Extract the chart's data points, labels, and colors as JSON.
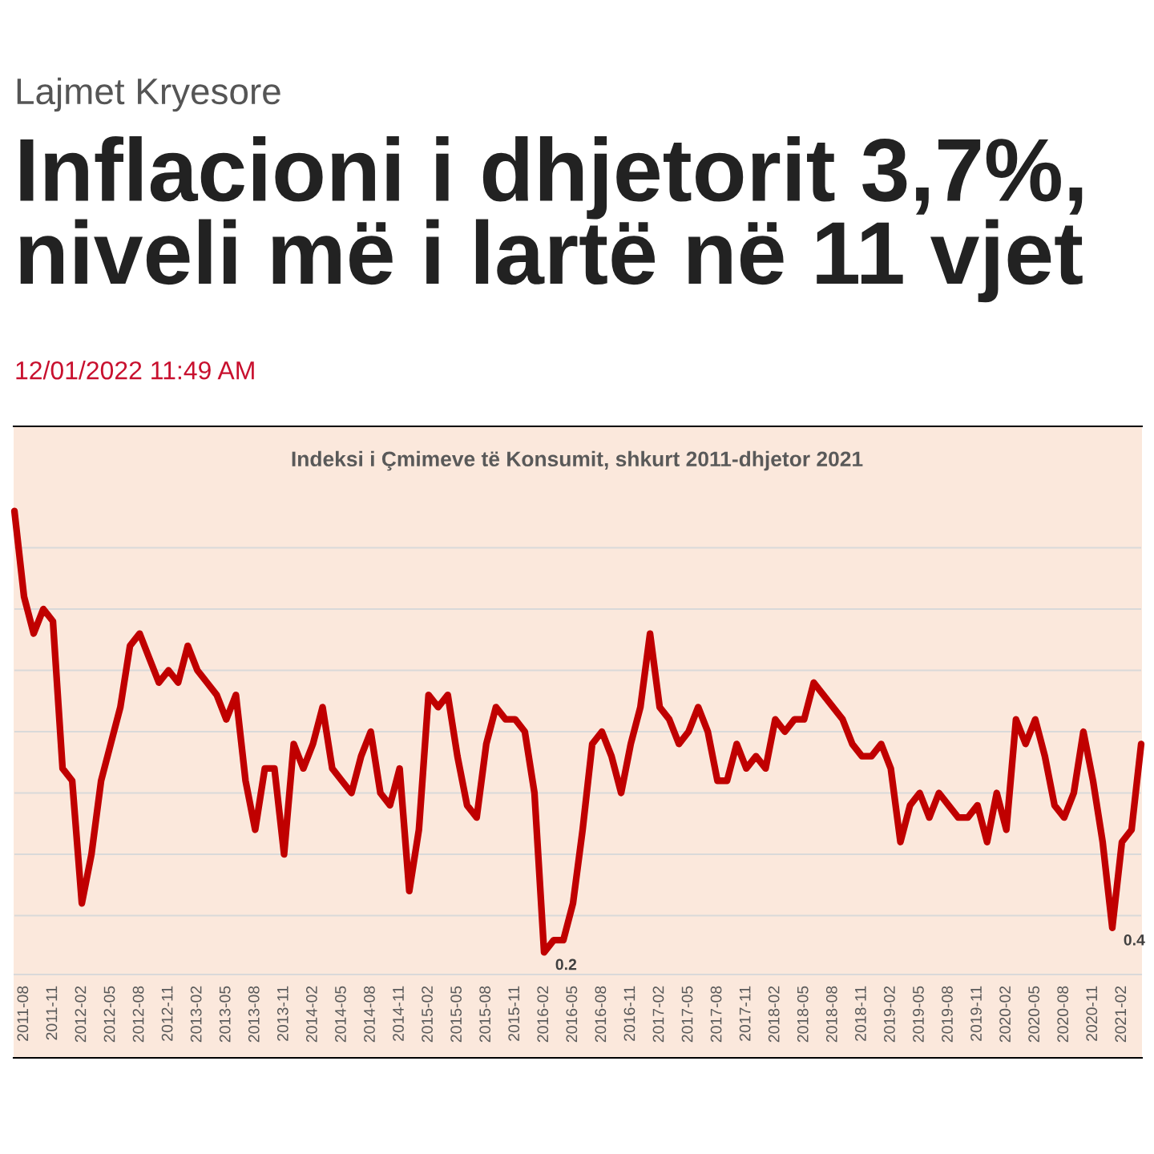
{
  "chart_data": {
    "type": "line",
    "title": "Inflacioni i dhjetorit 3,7%, niveli më i lartë në 11 vjet",
    "subtitle": "Indeksi i Çmimeve të Konsumit, shkurt 2011-dhjetor 2021",
    "annotations": [
      "Lajmet Kryesore",
      "12/01/2022 11:49 AM"
    ],
    "categories": [
      null,
      "2011-08",
      null,
      null,
      "2011-11",
      null,
      null,
      "2012-02",
      null,
      null,
      "2012-05",
      null,
      null,
      "2012-08",
      null,
      null,
      "2012-11",
      null,
      null,
      "2013-02",
      null,
      null,
      "2013-05",
      null,
      null,
      "2013-08",
      null,
      null,
      "2013-11",
      null,
      null,
      "2014-02",
      null,
      null,
      "2014-05",
      null,
      null,
      "2014-08",
      null,
      null,
      "2014-11",
      null,
      null,
      "2015-02",
      null,
      null,
      "2015-05",
      null,
      null,
      "2015-08",
      null,
      null,
      "2015-11",
      null,
      null,
      "2016-02",
      null,
      null,
      "2016-05",
      null,
      null,
      "2016-08",
      null,
      null,
      "2016-11",
      null,
      null,
      "2017-02",
      null,
      null,
      "2017-05",
      null,
      null,
      "2017-08",
      null,
      null,
      "2017-11",
      null,
      null,
      "2018-02",
      null,
      null,
      "2018-05",
      null,
      null,
      "2018-08",
      null,
      null,
      "2018-11",
      null,
      null,
      "2019-02",
      null,
      null,
      "2019-05",
      null,
      null,
      "2019-08",
      null,
      null,
      "2019-11",
      null,
      null,
      "2020-02",
      null,
      null,
      "2020-05",
      null,
      null,
      "2020-08",
      null,
      null,
      "2020-11",
      null,
      null,
      "2021-02",
      null,
      null
    ],
    "series": [
      {
        "color": "#c00000",
        "values": [
          3.8,
          3.1,
          2.8,
          3.0,
          2.9,
          1.7,
          1.6,
          0.6,
          1.0,
          1.6,
          1.9,
          2.2,
          2.7,
          2.8,
          2.6,
          2.4,
          2.5,
          2.4,
          2.7,
          2.5,
          2.4,
          2.3,
          2.1,
          2.3,
          1.6,
          1.2,
          1.7,
          1.7,
          1.0,
          1.9,
          1.7,
          1.9,
          2.2,
          1.7,
          1.6,
          1.5,
          1.8,
          2.0,
          1.5,
          1.4,
          1.7,
          0.7,
          1.2,
          2.3,
          2.2,
          2.3,
          1.8,
          1.4,
          1.3,
          1.9,
          2.2,
          2.1,
          2.1,
          2.0,
          1.5,
          0.2,
          0.3,
          0.3,
          0.6,
          1.2,
          1.9,
          2.0,
          1.8,
          1.5,
          1.9,
          2.2,
          2.8,
          2.2,
          2.1,
          1.9,
          2.0,
          2.2,
          2.0,
          1.6,
          1.6,
          1.9,
          1.7,
          1.8,
          1.7,
          2.1,
          2.0,
          2.1,
          2.1,
          2.4,
          2.3,
          2.2,
          2.1,
          1.9,
          1.8,
          1.8,
          1.9,
          1.7,
          1.1,
          1.4,
          1.5,
          1.3,
          1.5,
          1.4,
          1.3,
          1.3,
          1.4,
          1.1,
          1.5,
          1.2,
          2.1,
          1.9,
          2.1,
          1.8,
          1.4,
          1.3,
          1.5,
          2.0,
          1.6,
          1.1,
          0.4,
          1.1,
          1.2,
          1.9
        ],
        "value_labels": [
          null,
          null,
          null,
          null,
          null,
          null,
          null,
          null,
          null,
          null,
          null,
          null,
          null,
          null,
          null,
          null,
          null,
          null,
          null,
          null,
          null,
          null,
          null,
          null,
          null,
          null,
          null,
          null,
          null,
          null,
          null,
          null,
          null,
          null,
          null,
          null,
          null,
          null,
          null,
          null,
          null,
          null,
          null,
          null,
          null,
          null,
          null,
          null,
          null,
          null,
          null,
          null,
          null,
          null,
          null,
          "0.2",
          null,
          null,
          null,
          null,
          null,
          null,
          null,
          null,
          null,
          null,
          null,
          null,
          null,
          null,
          null,
          null,
          null,
          null,
          null,
          null,
          null,
          null,
          null,
          null,
          null,
          null,
          null,
          null,
          null,
          null,
          null,
          null,
          null,
          null,
          null,
          null,
          null,
          null,
          null,
          null,
          null,
          null,
          null,
          null,
          null,
          null,
          null,
          null,
          null,
          null,
          null,
          null,
          null,
          null,
          null,
          null,
          null,
          null,
          "0.4",
          null,
          null,
          null
        ]
      }
    ],
    "tick_labels": "x",
    "grid": "y",
    "line_style": "solid",
    "marker": "none"
  }
}
